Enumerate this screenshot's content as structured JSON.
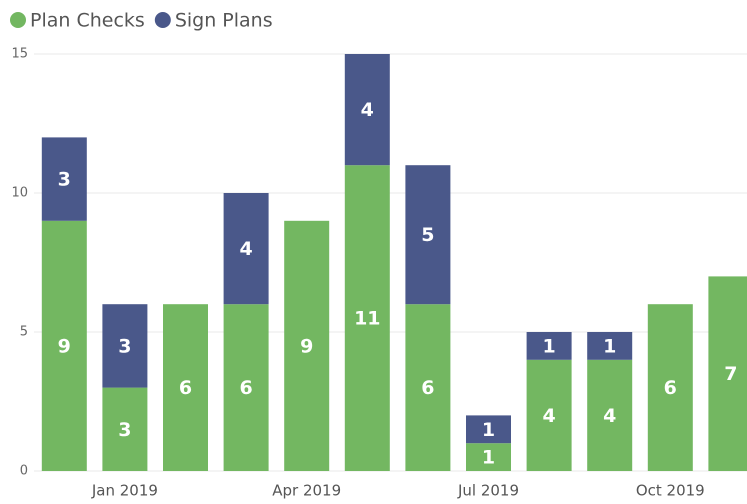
{
  "chart_data": {
    "type": "stacked-bar",
    "categories": [
      null,
      "Jan 2019",
      null,
      null,
      "Apr 2019",
      null,
      null,
      "Jul 2019",
      null,
      null,
      "Oct 2019",
      null
    ],
    "series": [
      {
        "name": "Plan Checks",
        "color": "#73b761",
        "values": [
          9,
          3,
          6,
          6,
          9,
          11,
          6,
          1,
          4,
          4,
          6,
          7
        ]
      },
      {
        "name": "Sign Plans",
        "color": "#4a588a",
        "values": [
          3,
          3,
          null,
          4,
          null,
          4,
          5,
          1,
          1,
          1,
          null,
          null
        ]
      }
    ],
    "ylim": [
      0,
      15
    ],
    "yticks": [
      0,
      5,
      10,
      15
    ],
    "grid": true,
    "legend": "top-left"
  }
}
